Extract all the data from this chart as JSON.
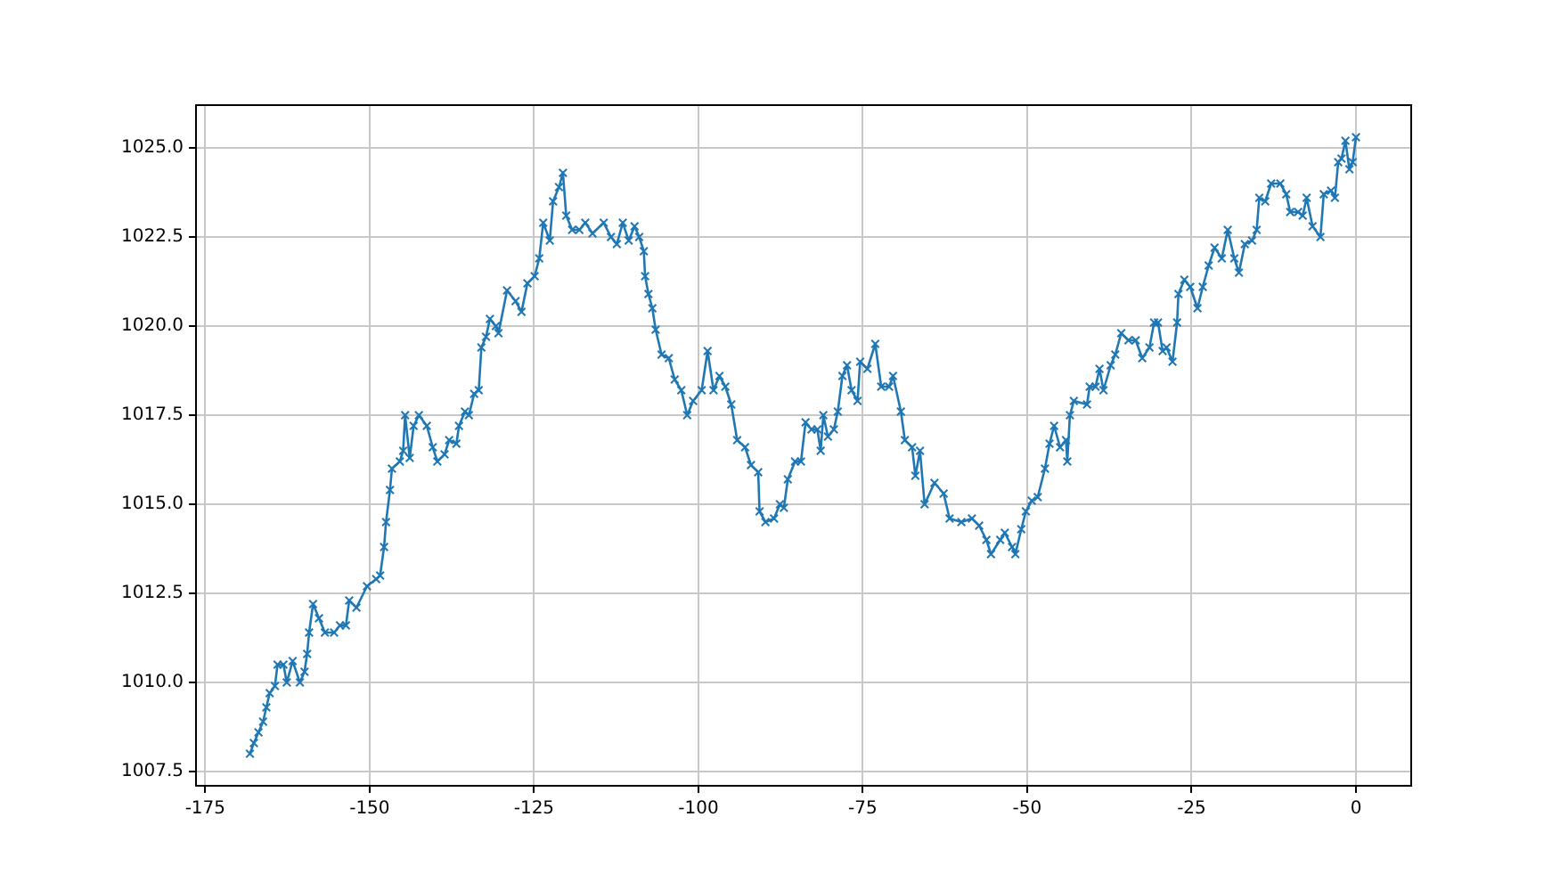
{
  "chart_data": {
    "type": "line",
    "marker": "cross",
    "grid": true,
    "legend": false,
    "xlim": [
      -176.4,
      8.4
    ],
    "xticks": [
      -175,
      -150,
      -125,
      -100,
      -75,
      -50,
      -25,
      0
    ],
    "ylim": [
      1007.1,
      1026.2
    ],
    "yticks": [
      {
        "value": 1007.5,
        "label": "1007.5"
      },
      {
        "value": 1010,
        "label": "1010.0"
      },
      {
        "value": 1012.5,
        "label": "1012.5"
      },
      {
        "value": 1015,
        "label": "1015.0"
      },
      {
        "value": 1017.5,
        "label": "1017.5"
      },
      {
        "value": 1020,
        "label": "1020.0"
      },
      {
        "value": 1022.5,
        "label": "1022.5"
      },
      {
        "value": 1025,
        "label": "1025.0"
      }
    ],
    "series": [
      {
        "color": "#1f77b4",
        "x": [
          -168.2,
          -167.6,
          -166.9,
          -166.2,
          -165.7,
          -165.2,
          -164.4,
          -164.0,
          -163.1,
          -162.6,
          -161.7,
          -160.6,
          -159.9,
          -159.5,
          -159.2,
          -158.6,
          -157.7,
          -156.8,
          -155.4,
          -154.5,
          -153.6,
          -153.1,
          -152.0,
          -150.4,
          -149.0,
          -148.4,
          -147.8,
          -147.5,
          -146.9,
          -146.6,
          -145.4,
          -144.9,
          -144.6,
          -143.9,
          -143.3,
          -142.5,
          -141.3,
          -140.4,
          -139.7,
          -138.6,
          -137.9,
          -136.8,
          -136.4,
          -135.5,
          -134.9,
          -134.1,
          -133.4,
          -133.0,
          -132.3,
          -131.7,
          -130.8,
          -130.4,
          -129.1,
          -127.8,
          -126.9,
          -126.0,
          -124.9,
          -124.2,
          -123.6,
          -122.6,
          -122.1,
          -121.2,
          -120.6,
          -120.1,
          -119.2,
          -118.1,
          -117.2,
          -116.1,
          -114.4,
          -113.3,
          -112.4,
          -111.5,
          -110.6,
          -109.7,
          -109.0,
          -108.3,
          -108.1,
          -107.6,
          -107.0,
          -106.5,
          -105.6,
          -104.5,
          -103.6,
          -102.6,
          -101.7,
          -100.8,
          -99.5,
          -98.6,
          -97.7,
          -96.8,
          -95.9,
          -95.0,
          -94.1,
          -92.9,
          -92.0,
          -90.9,
          -90.7,
          -89.8,
          -88.5,
          -87.6,
          -87.0,
          -86.4,
          -85.3,
          -84.4,
          -83.7,
          -82.8,
          -81.9,
          -81.4,
          -81.0,
          -80.3,
          -79.4,
          -78.8,
          -78.1,
          -77.4,
          -76.7,
          -75.8,
          -75.4,
          -74.3,
          -73.1,
          -72.2,
          -71.0,
          -70.4,
          -69.2,
          -68.6,
          -67.5,
          -67.0,
          -66.3,
          -65.6,
          -64.1,
          -62.7,
          -61.8,
          -60.0,
          -58.4,
          -57.3,
          -56.2,
          -55.5,
          -54.1,
          -53.4,
          -52.3,
          -51.8,
          -50.9,
          -50.2,
          -49.3,
          -48.4,
          -47.3,
          -46.6,
          -45.9,
          -45.0,
          -44.1,
          -43.9,
          -43.5,
          -42.9,
          -40.9,
          -40.5,
          -39.6,
          -39.0,
          -38.4,
          -37.3,
          -36.6,
          -35.7,
          -34.6,
          -33.5,
          -32.5,
          -31.4,
          -30.7,
          -30.1,
          -29.4,
          -28.8,
          -27.9,
          -27.2,
          -27.0,
          -26.1,
          -25.2,
          -24.1,
          -23.3,
          -22.4,
          -21.5,
          -20.4,
          -19.5,
          -18.5,
          -17.8,
          -16.9,
          -15.8,
          -15.1,
          -14.7,
          -13.8,
          -12.9,
          -11.5,
          -10.6,
          -10.0,
          -8.8,
          -8.1,
          -7.5,
          -6.6,
          -5.4,
          -4.9,
          -3.8,
          -3.2,
          -2.7,
          -2.2,
          -1.6,
          -1.0,
          -0.5,
          0.0
        ],
        "values": [
          1008.0,
          1008.3,
          1008.6,
          1008.9,
          1009.3,
          1009.7,
          1009.9,
          1010.5,
          1010.5,
          1010.0,
          1010.6,
          1010.0,
          1010.3,
          1010.8,
          1011.4,
          1012.2,
          1011.8,
          1011.4,
          1011.4,
          1011.6,
          1011.6,
          1012.3,
          1012.1,
          1012.7,
          1012.9,
          1013.0,
          1013.8,
          1014.5,
          1015.4,
          1016.0,
          1016.2,
          1016.5,
          1017.5,
          1016.3,
          1017.2,
          1017.5,
          1017.2,
          1016.6,
          1016.2,
          1016.4,
          1016.8,
          1016.7,
          1017.2,
          1017.6,
          1017.5,
          1018.1,
          1018.2,
          1019.4,
          1019.7,
          1020.2,
          1020.0,
          1019.8,
          1021.0,
          1020.7,
          1020.4,
          1021.2,
          1021.4,
          1021.9,
          1022.9,
          1022.4,
          1023.5,
          1023.9,
          1024.3,
          1023.1,
          1022.7,
          1022.7,
          1022.9,
          1022.6,
          1022.9,
          1022.5,
          1022.3,
          1022.9,
          1022.4,
          1022.8,
          1022.5,
          1022.1,
          1021.4,
          1020.9,
          1020.5,
          1019.9,
          1019.2,
          1019.1,
          1018.5,
          1018.2,
          1017.5,
          1017.9,
          1018.2,
          1019.3,
          1018.2,
          1018.6,
          1018.3,
          1017.8,
          1016.8,
          1016.6,
          1016.1,
          1015.9,
          1014.8,
          1014.5,
          1014.6,
          1015.0,
          1014.9,
          1015.7,
          1016.2,
          1016.2,
          1017.3,
          1017.1,
          1017.1,
          1016.5,
          1017.5,
          1016.9,
          1017.1,
          1017.6,
          1018.6,
          1018.9,
          1018.2,
          1017.9,
          1019.0,
          1018.8,
          1019.5,
          1018.3,
          1018.3,
          1018.6,
          1017.6,
          1016.8,
          1016.6,
          1015.8,
          1016.5,
          1015.0,
          1015.6,
          1015.3,
          1014.6,
          1014.5,
          1014.6,
          1014.4,
          1014.0,
          1013.6,
          1014.0,
          1014.2,
          1013.8,
          1013.6,
          1014.3,
          1014.8,
          1015.1,
          1015.2,
          1016.0,
          1016.7,
          1017.2,
          1016.6,
          1016.8,
          1016.2,
          1017.5,
          1017.9,
          1017.8,
          1018.3,
          1018.3,
          1018.8,
          1018.2,
          1018.9,
          1019.2,
          1019.8,
          1019.6,
          1019.6,
          1019.1,
          1019.4,
          1020.1,
          1020.1,
          1019.3,
          1019.4,
          1019.0,
          1020.1,
          1020.9,
          1021.3,
          1021.1,
          1020.5,
          1021.1,
          1021.7,
          1022.2,
          1021.9,
          1022.7,
          1021.9,
          1021.5,
          1022.3,
          1022.4,
          1022.7,
          1023.6,
          1023.5,
          1024.0,
          1024.0,
          1023.7,
          1023.2,
          1023.2,
          1023.1,
          1023.6,
          1022.8,
          1022.5,
          1023.7,
          1023.8,
          1023.6,
          1024.6,
          1024.7,
          1025.2,
          1024.4,
          1024.6,
          1025.3
        ]
      }
    ]
  }
}
